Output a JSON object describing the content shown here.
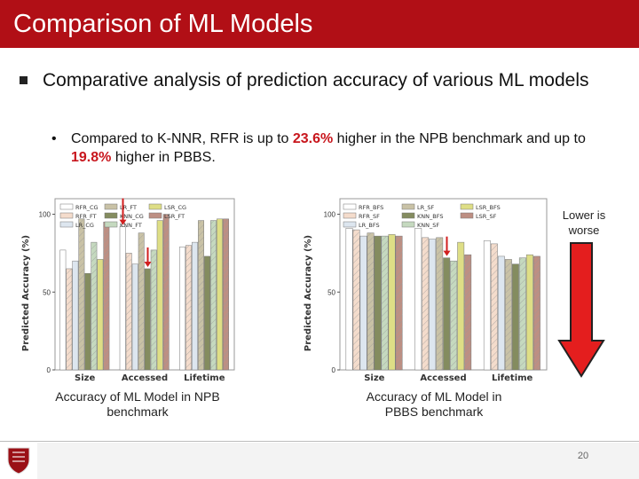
{
  "title": "Comparison of ML Models",
  "bullet1": "Comparative analysis of prediction accuracy of various ML models",
  "bullet2": {
    "marker": "•",
    "part1": "Compared to K-NNR, RFR is up to ",
    "value1": "23.6%",
    "part2": " higher in the NPB benchmark and up to ",
    "value2": "19.8%",
    "part3": " higher in PBBS."
  },
  "lower_is_worse": "Lower is worse",
  "captions": {
    "npb": "Accuracy of ML Model in NPB benchmark",
    "pbbs": "Accuracy of ML Model in PBBS benchmark"
  },
  "page_number": "20",
  "colors": {
    "accent": "#b10f16",
    "highlight": "#c8161d",
    "arrow": "#e41e1e"
  },
  "chart_data": [
    {
      "type": "bar",
      "ylabel": "Predicted Accuracy (%)",
      "categories": [
        "Size",
        "Accessed",
        "Lifetime"
      ],
      "ylim": [
        0,
        110
      ],
      "yticks": [
        0,
        50,
        100
      ],
      "highlight_arrows": [
        {
          "category": "Accessed",
          "series": "RFR_CG"
        },
        {
          "category": "Accessed",
          "series": "KNN_CG"
        }
      ],
      "series": [
        {
          "name": "RFR_CG",
          "color": "#ffffff",
          "values": [
            77,
            92,
            79
          ]
        },
        {
          "name": "RFR_FT",
          "color": "#f4dccc",
          "values": [
            65,
            75,
            80
          ]
        },
        {
          "name": "LR_CG",
          "color": "#dde6ef",
          "values": [
            70,
            68,
            82
          ]
        },
        {
          "name": "LR_FT",
          "color": "#c9c2a6",
          "values": [
            97,
            88,
            96
          ]
        },
        {
          "name": "KNN_CG",
          "color": "#848c5f",
          "values": [
            62,
            65,
            73
          ]
        },
        {
          "name": "KNN_FT",
          "color": "#c5d9bf",
          "values": [
            82,
            77,
            96
          ]
        },
        {
          "name": "LSR_CG",
          "color": "#dede86",
          "values": [
            71,
            96,
            97
          ]
        },
        {
          "name": "LSR_FT",
          "color": "#bd8f83",
          "values": [
            95,
            100,
            97
          ]
        }
      ],
      "legend": [
        "RFR_CG",
        "LR_FT",
        "LSR_CG",
        "RFR_FT",
        "KNN_CG",
        "LSR_FT",
        "LR_CG",
        "KNN_FT"
      ]
    },
    {
      "type": "bar",
      "ylabel": "Predicted Accuracy (%)",
      "categories": [
        "Size",
        "Accessed",
        "Lifetime"
      ],
      "ylim": [
        0,
        110
      ],
      "yticks": [
        0,
        50,
        100
      ],
      "highlight_arrows": [
        {
          "category": "Accessed",
          "series": "KNN_BFS"
        }
      ],
      "series": [
        {
          "name": "RFR_BFS",
          "color": "#ffffff",
          "values": [
            91,
            91,
            83
          ]
        },
        {
          "name": "RFR_SF",
          "color": "#f4dccc",
          "values": [
            90,
            85,
            81
          ]
        },
        {
          "name": "LR_BFS",
          "color": "#dde6ef",
          "values": [
            86,
            84,
            73
          ]
        },
        {
          "name": "LR_SF",
          "color": "#c9c2a6",
          "values": [
            88,
            85,
            71
          ]
        },
        {
          "name": "KNN_BFS",
          "color": "#848c5f",
          "values": [
            86,
            72,
            68
          ]
        },
        {
          "name": "KNN_SF",
          "color": "#c5d9bf",
          "values": [
            86,
            70,
            72
          ]
        },
        {
          "name": "LSR_BFS",
          "color": "#dede86",
          "values": [
            87,
            82,
            74
          ]
        },
        {
          "name": "LSR_SF",
          "color": "#bd8f83",
          "values": [
            86,
            74,
            73
          ]
        }
      ],
      "legend": [
        "RFR_BFS",
        "LR_SF",
        "LSR_BFS",
        "RFR_SF",
        "KNN_BFS",
        "LSR_SF",
        "LR_BFS",
        "KNN_SF"
      ]
    }
  ]
}
